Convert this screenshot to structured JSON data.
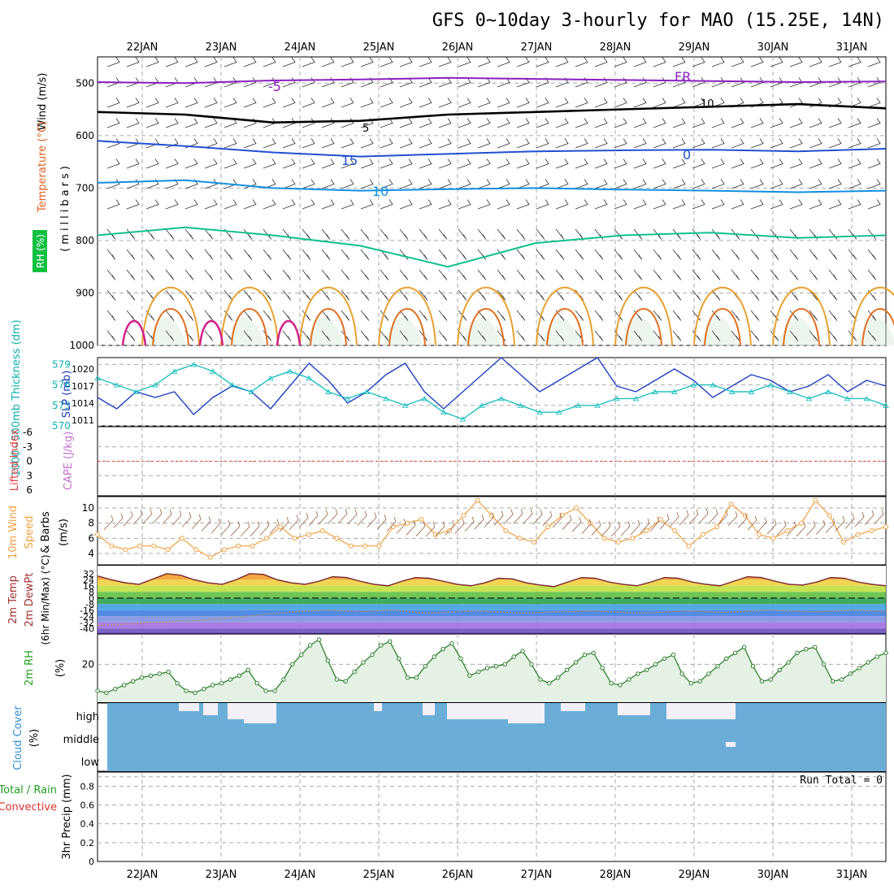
{
  "title": "GFS 0~10day 3-hourly for MAO (15.25E, 14N)",
  "dates": [
    "22JAN",
    "23JAN",
    "24JAN",
    "25JAN",
    "26JAN",
    "27JAN",
    "28JAN",
    "29JAN",
    "30JAN",
    "31JAN"
  ],
  "chart_data": [
    {
      "type": "contour",
      "panel": "upper-air",
      "ylabel_parts": [
        "RH (%)",
        "Temperature (°C)",
        "Wind (m/s)"
      ],
      "ylabel_units": "(millibars)",
      "y_axis": {
        "ticks": [
          500,
          600,
          700,
          800,
          900,
          1000
        ],
        "range": [
          450,
          1000
        ],
        "inverted": true
      },
      "contour_labels": [
        "-5",
        "FR",
        "5",
        "10",
        "15",
        "0",
        "10"
      ],
      "temperature_isolines": [
        {
          "label": "-5",
          "pressure_mb": [
            498,
            500,
            495,
            493,
            490,
            492,
            494,
            496,
            498,
            497
          ]
        },
        {
          "label": "FR",
          "pressure_mb": [
            555,
            560,
            575,
            572,
            560,
            555,
            550,
            545,
            540,
            548
          ]
        },
        {
          "label": "5",
          "pressure_mb": [
            610,
            620,
            632,
            640,
            635,
            630,
            628,
            627,
            630,
            625
          ]
        },
        {
          "label": "10",
          "pressure_mb": [
            690,
            685,
            700,
            705,
            702,
            700,
            703,
            705,
            708,
            705
          ]
        },
        {
          "label": "15",
          "pressure_mb": [
            790,
            775,
            790,
            810,
            850,
            805,
            790,
            785,
            795,
            790
          ]
        }
      ]
    },
    {
      "type": "line",
      "panel": "slp-thickness",
      "ylabel_left": "1000~500mb Thickness (dm)",
      "ylabel_right": "SLP (mb)",
      "y_left_ticks": [
        570,
        573,
        576,
        579
      ],
      "y_right_ticks": [
        1011,
        1014,
        1017,
        1020
      ],
      "series": [
        {
          "name": "SLP (mb)",
          "values": [
            1015,
            1013,
            1016,
            1015,
            1016,
            1012,
            1015,
            1017,
            1016,
            1013,
            1017,
            1021,
            1018,
            1014,
            1016,
            1019,
            1021,
            1016,
            1013,
            1016,
            1019,
            1022,
            1019,
            1016,
            1018,
            1020,
            1022,
            1017,
            1016,
            1018,
            1020,
            1018,
            1015,
            1017,
            1019,
            1018,
            1016,
            1017,
            1019,
            1016,
            1018,
            1017
          ]
        },
        {
          "name": "1000~500mb Thickness (dm)",
          "values": [
            577,
            576,
            575,
            576,
            578,
            579,
            578,
            576,
            575,
            577,
            578,
            577,
            575,
            574,
            575,
            574,
            573,
            574,
            572,
            571,
            573,
            574,
            573,
            572,
            572,
            573,
            573,
            574,
            574,
            575,
            575,
            576,
            576,
            575,
            575,
            576,
            575,
            574,
            575,
            574,
            574,
            573
          ]
        }
      ]
    },
    {
      "type": "line",
      "panel": "stability",
      "ylabel_left": "Lifted Index",
      "ylabel_right": "CAPE (J/kg)",
      "y_ticks": [
        "-6",
        "-3",
        "0",
        "3",
        "6"
      ]
    },
    {
      "type": "line",
      "panel": "wind",
      "ylabel_parts": [
        "10m Wind",
        "Speed",
        "& Barbs",
        "(m/s)"
      ],
      "y_ticks": [
        4,
        6,
        8,
        10
      ],
      "series": [
        {
          "name": "Speed",
          "values": [
            6.5,
            5,
            4.5,
            5,
            5,
            4.5,
            6,
            4.5,
            3.5,
            4.5,
            5,
            5,
            6,
            7.5,
            6,
            6.5,
            7,
            6,
            5,
            5,
            5,
            7.5,
            8,
            8.5,
            6.5,
            7,
            9,
            11,
            9,
            7,
            6,
            5.5,
            7.5,
            9,
            10,
            8,
            6,
            5.5,
            6,
            7,
            8.5,
            7,
            5,
            6.5,
            7.5,
            10.5,
            9,
            6.5,
            6,
            7,
            8,
            11,
            9,
            5.5,
            6.5,
            7,
            7.5
          ]
        }
      ]
    },
    {
      "type": "area",
      "panel": "temperature",
      "ylabel_parts": [
        "2m Temp",
        "2m DewPt",
        "(6hr Min/Max) (°C)"
      ],
      "y_ticks": [
        "32",
        "24",
        "16",
        "8",
        "0",
        "-8",
        "-16",
        "-24",
        "-32",
        "-40"
      ],
      "series": [
        {
          "name": "2m Temp",
          "values": [
            29,
            24,
            20,
            18,
            25,
            32,
            30,
            24,
            20,
            18,
            24,
            32,
            31,
            24,
            20,
            18,
            22,
            28,
            27,
            22,
            18,
            16,
            22,
            27,
            26,
            22,
            18,
            16,
            20,
            26,
            25,
            20,
            17,
            15,
            21,
            27,
            26,
            21,
            18,
            16,
            21,
            27,
            26,
            21,
            18,
            16,
            22,
            28,
            27,
            22,
            18,
            17,
            21,
            27,
            26,
            21,
            18,
            16
          ]
        },
        {
          "name": "2m DewPt",
          "values": [
            -36,
            -35,
            -34,
            -32,
            -32,
            -30,
            -30,
            -28,
            -26,
            -24,
            -22,
            -20,
            -18,
            -17,
            -16,
            -17,
            -18,
            -17,
            -16,
            -18,
            -20,
            -19,
            -18,
            -17,
            -18,
            -19,
            -20,
            -19,
            -18,
            -18,
            -17,
            -18,
            -19,
            -20,
            -19,
            -18,
            -17,
            -18,
            -19,
            -18,
            -17,
            -16,
            -17,
            -18,
            -18,
            -17,
            -16,
            -17,
            -18
          ]
        }
      ]
    },
    {
      "type": "area",
      "panel": "relative-humidity",
      "ylabel": "2m RH",
      "yunits": "(%)",
      "y_ticks": [
        20
      ],
      "series": [
        {
          "name": "2m RH",
          "values": [
            6,
            5,
            7,
            9,
            11,
            13,
            14,
            15,
            16,
            10,
            6,
            5,
            7,
            9,
            10,
            12,
            14,
            17,
            10,
            6,
            6,
            12,
            20,
            25,
            30,
            33,
            22,
            12,
            11,
            16,
            21,
            25,
            30,
            32,
            23,
            13,
            13,
            19,
            24,
            28,
            31,
            23,
            14,
            16,
            18,
            19,
            20,
            24,
            27,
            20,
            12,
            10,
            13,
            17,
            21,
            25,
            26,
            18,
            10,
            9,
            12,
            15,
            17,
            20,
            23,
            25,
            15,
            10,
            11,
            15,
            19,
            23,
            26,
            29,
            19,
            11,
            12,
            17,
            21,
            26,
            28,
            29,
            20,
            11,
            12,
            15,
            18,
            21,
            24,
            26
          ]
        }
      ]
    },
    {
      "type": "heatmap",
      "panel": "cloud-cover",
      "ylabel": "Cloud Cover",
      "yunits": "(%)",
      "levels": [
        "high",
        "middle",
        "low"
      ]
    },
    {
      "type": "bar",
      "panel": "precipitation",
      "ylabel_left": "Total / Rain",
      "ylabel_left2": "Convective",
      "ylabel_right": "3hr Precip (mm)",
      "y_ticks": [
        "0",
        "0.2",
        "0.4",
        "0.6",
        "0.8"
      ],
      "annotation": "Run Total = 0",
      "values": []
    }
  ]
}
